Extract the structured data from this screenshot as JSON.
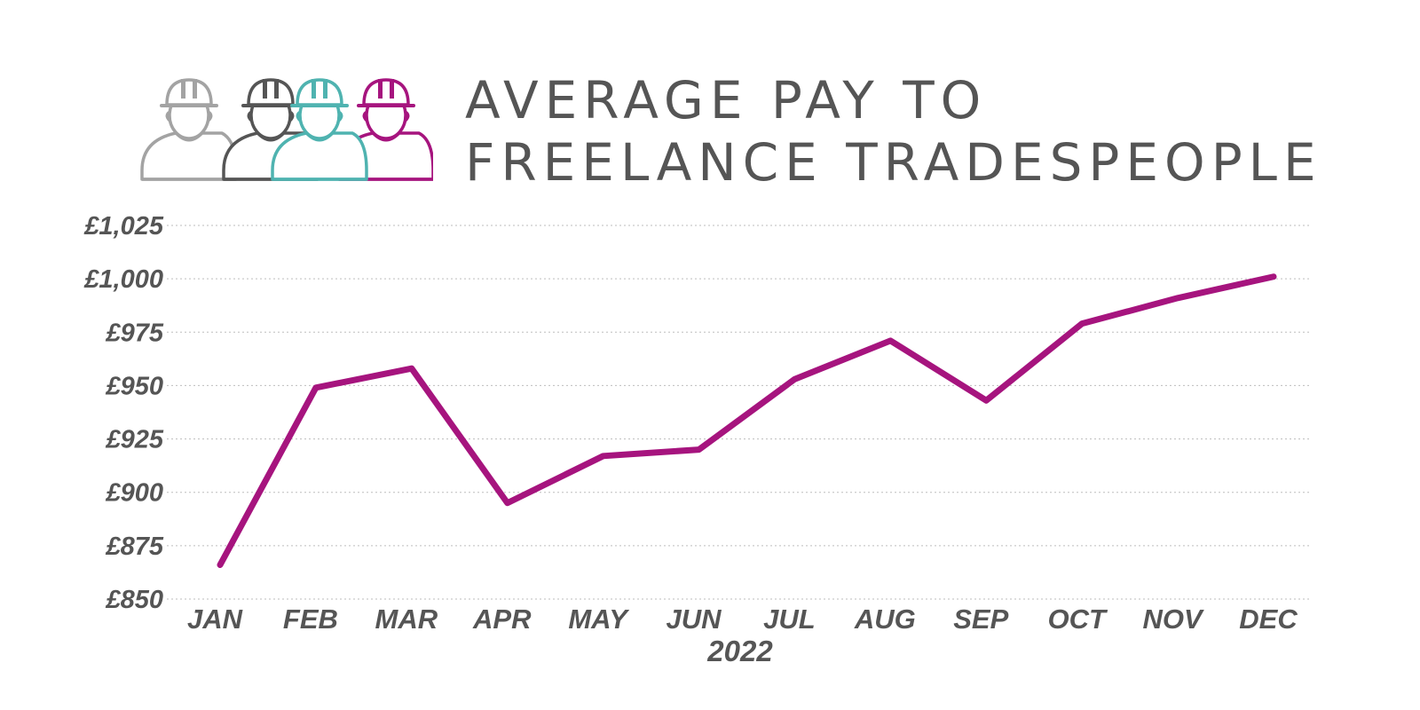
{
  "title": {
    "line1": "AVERAGE PAY TO",
    "line2": "FREELANCE TRADESPEOPLE"
  },
  "icons": [
    {
      "name": "worker-icon",
      "color": "#a3a3a3"
    },
    {
      "name": "worker-icon",
      "color": "#555555"
    },
    {
      "name": "worker-icon",
      "color": "#4fb3b0"
    },
    {
      "name": "worker-icon",
      "color": "#a6147e"
    }
  ],
  "chart_data": {
    "type": "line",
    "title": "AVERAGE PAY TO FREELANCE TRADESPEOPLE",
    "xlabel": "2022",
    "ylabel": "",
    "categories": [
      "JAN",
      "FEB",
      "MAR",
      "APR",
      "MAY",
      "JUN",
      "JUL",
      "AUG",
      "SEP",
      "OCT",
      "NOV",
      "DEC"
    ],
    "series": [
      {
        "color": "#a6147e",
        "values": [
          866,
          949,
          958,
          895,
          917,
          920,
          953,
          971,
          943,
          979,
          991,
          1001
        ]
      }
    ],
    "ylim": [
      850,
      1025
    ],
    "yticks": [
      850,
      875,
      900,
      925,
      950,
      975,
      1000,
      1025
    ],
    "ytick_labels": [
      "£850",
      "£875",
      "£900",
      "£925",
      "£950",
      "£975",
      "£1,000",
      "£1,025"
    ],
    "grid": true,
    "grid_style": "dotted",
    "legend": "none"
  }
}
